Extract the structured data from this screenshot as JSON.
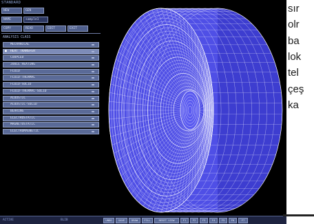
{
  "panel": {
    "title": "STANDARD",
    "row1": [
      "NEW",
      "GEN"
    ],
    "name_label": "NAME",
    "name_value": "sample1",
    "row3": [
      "COPY",
      "READ",
      "EDIT",
      "EXIT"
    ],
    "section_title": "ANALYSIS CLASS",
    "items": [
      "MECHANICAL",
      "HEAT TRANSFER",
      "COUPLED",
      "JOULE HEATING",
      "FLUID",
      "FLUID-THERMAL",
      "FLUID-SOLID",
      "FLUID-THERMAL-SOLID",
      "ACOUSTIC",
      "ACOUSTIC-SOLID",
      "BEARING",
      "ELECTROSTATIC",
      "MAGNETOSTATIC",
      "ELECTROMAGNETIC"
    ],
    "selected_index": 1,
    "selected_mark": "■"
  },
  "bottom": {
    "status_left": "ACTIVE",
    "status_mid": "BLIB",
    "buttons": [
      "UNDO",
      "SAVE",
      "DRAW",
      "FILL",
      "RESET VIEW",
      "F1",
      "F2",
      "F3",
      "F4",
      "F5",
      "F6",
      "F7"
    ]
  },
  "doc": {
    "lines": [
      "sır",
      "olr",
      "ba",
      "lok",
      "tel",
      "çeş",
      "ka"
    ]
  },
  "colors": {
    "mesh": "#4f4fe6",
    "mesh_lines": "#ffffff",
    "panel_button": "#4f5f8c",
    "panel_border": "#8e9cc4"
  },
  "icons": {
    "selected_item_marker": "square-bullet"
  }
}
